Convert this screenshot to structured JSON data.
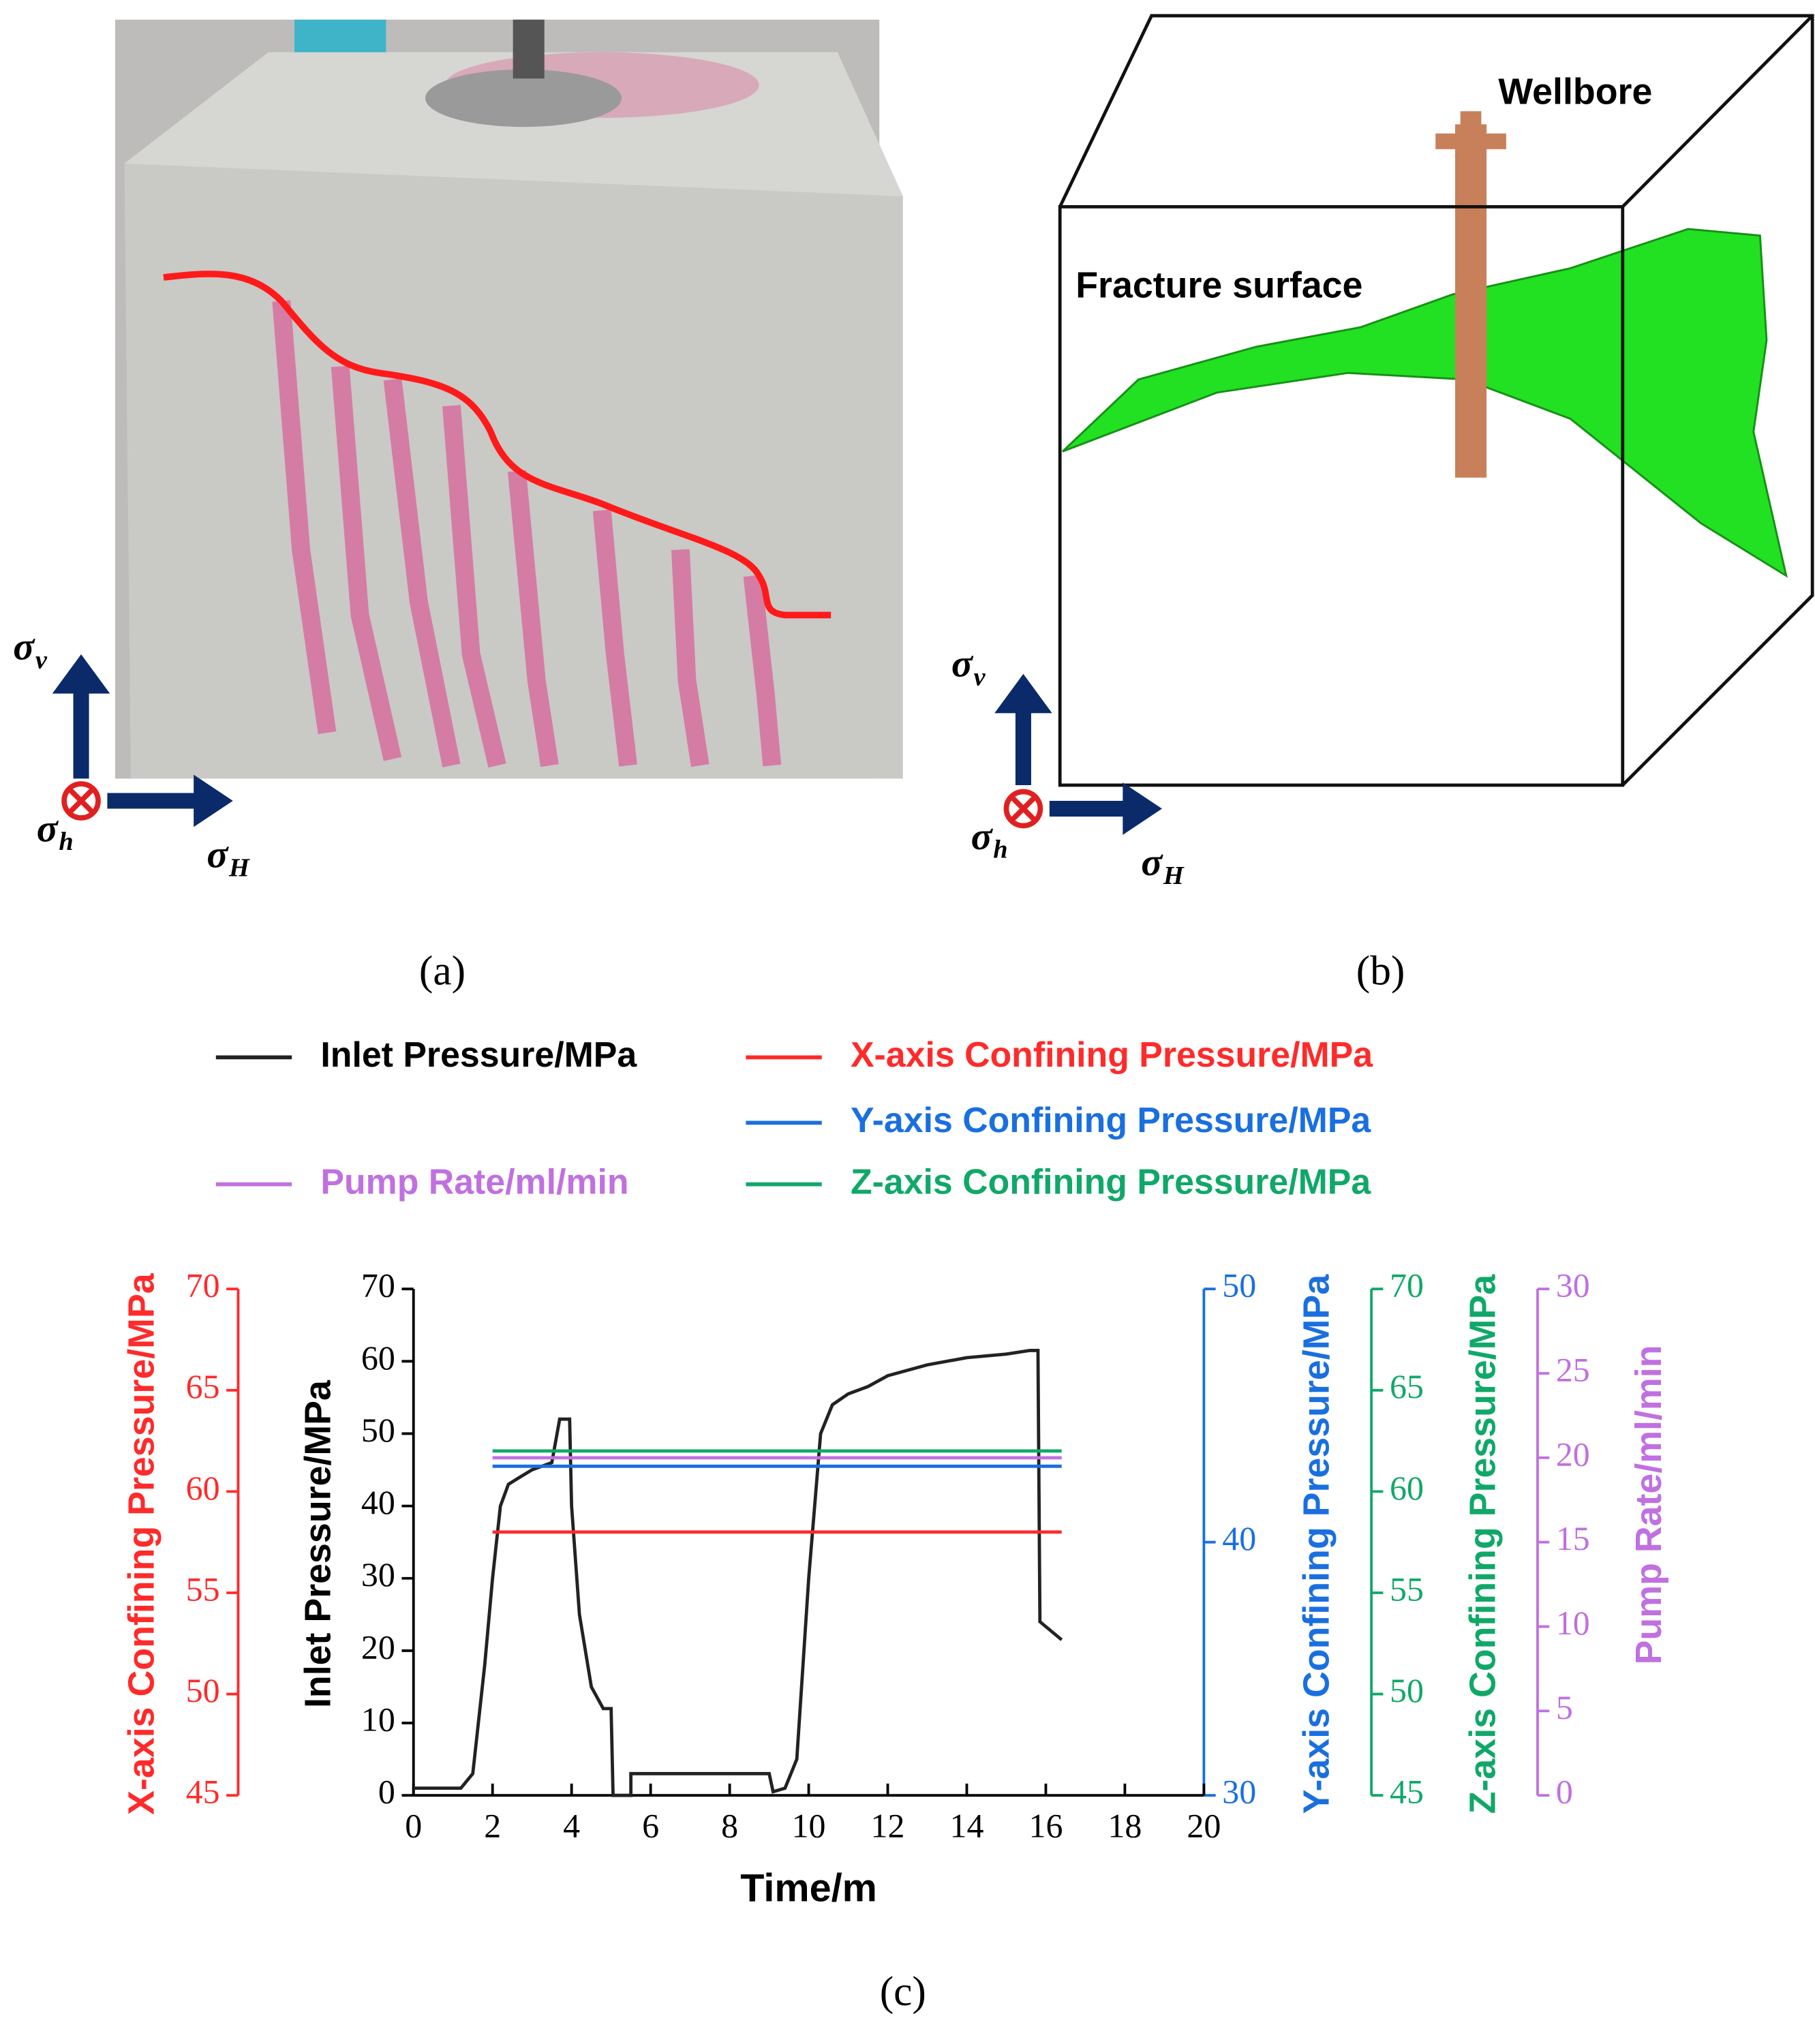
{
  "panel_a": {
    "caption": "(a)",
    "stress_labels": [
      {
        "symbol": "σ",
        "sub": "v"
      },
      {
        "symbol": "σ",
        "sub": "h"
      },
      {
        "symbol": "σ",
        "sub": "H"
      }
    ]
  },
  "panel_b": {
    "caption": "(b)",
    "wellbore_label": "Wellbore",
    "fracture_label": "Fracture surface",
    "stress_labels": [
      {
        "symbol": "σ",
        "sub": "v"
      },
      {
        "symbol": "σ",
        "sub": "h"
      },
      {
        "symbol": "σ",
        "sub": "H"
      }
    ]
  },
  "chart_data": {
    "type": "line",
    "caption": "(c)",
    "xlabel": "Time/m",
    "xlim": [
      0,
      20
    ],
    "xticks": [
      0,
      2,
      4,
      6,
      8,
      10,
      12,
      14,
      16,
      18,
      20
    ],
    "y_axes": [
      {
        "label": "X-axis Confining Pressure/MPa",
        "color": "#ff2a2a",
        "ylim": [
          45,
          70
        ],
        "yticks": [
          45,
          50,
          55,
          60,
          65,
          70
        ]
      },
      {
        "label": "Inlet Pressure/MPa",
        "color": "#000000",
        "ylim": [
          0,
          70
        ],
        "yticks": [
          0,
          10,
          20,
          30,
          40,
          50,
          60,
          70
        ]
      },
      {
        "label": "Y-axis Confining Pressure/MPa",
        "color": "#1a6fe0",
        "ylim": [
          30,
          50
        ],
        "yticks": [
          30,
          40,
          50
        ]
      },
      {
        "label": "Z-axis Confining Pressure/MPa",
        "color": "#10a868",
        "ylim": [
          45,
          70
        ],
        "yticks": [
          45,
          50,
          55,
          60,
          65,
          70
        ]
      },
      {
        "label": "Pump Rate/ml/min",
        "color": "#c070e0",
        "ylim": [
          0,
          30
        ],
        "yticks": [
          0,
          5,
          10,
          15,
          20,
          25,
          30
        ]
      }
    ],
    "series": [
      {
        "name": "Inlet Pressure/MPa",
        "color": "#222222",
        "axis": 1,
        "x": [
          0,
          1.2,
          1.5,
          1.8,
          2.0,
          2.2,
          2.4,
          2.7,
          3.0,
          3.5,
          3.7,
          3.95,
          4.0,
          4.2,
          4.5,
          4.8,
          5.0,
          5.05,
          5.5,
          5.5,
          9.0,
          9.1,
          9.4,
          9.7,
          10.0,
          10.3,
          10.6,
          11,
          11.5,
          12,
          13,
          14,
          15,
          15.6,
          15.8,
          15.85,
          16.4
        ],
        "values": [
          1,
          1,
          3,
          18,
          30,
          40,
          43,
          44,
          45,
          46,
          52,
          52,
          40,
          25,
          15,
          12,
          12,
          0,
          0,
          3,
          3,
          0.5,
          1,
          5,
          30,
          50,
          54,
          55.5,
          56.5,
          58,
          59.5,
          60.5,
          61,
          61.5,
          61.5,
          24,
          21.5
        ]
      },
      {
        "name": "X-axis Confining Pressure/MPa",
        "color": "#ff2a2a",
        "axis": 0,
        "x": [
          2,
          16.4
        ],
        "values": [
          58,
          58
        ]
      },
      {
        "name": "Y-axis Confining Pressure/MPa",
        "color": "#1a6fe0",
        "axis": 2,
        "x": [
          2,
          16.4
        ],
        "values": [
          43,
          43
        ]
      },
      {
        "name": "Z-axis Confining Pressure/MPa",
        "color": "#10a868",
        "axis": 3,
        "x": [
          2,
          16.4
        ],
        "values": [
          62,
          62
        ]
      },
      {
        "name": "Pump Rate/ml/min",
        "color": "#c070e0",
        "axis": 4,
        "x": [
          2,
          16.4
        ],
        "values": [
          20,
          20
        ]
      }
    ]
  }
}
